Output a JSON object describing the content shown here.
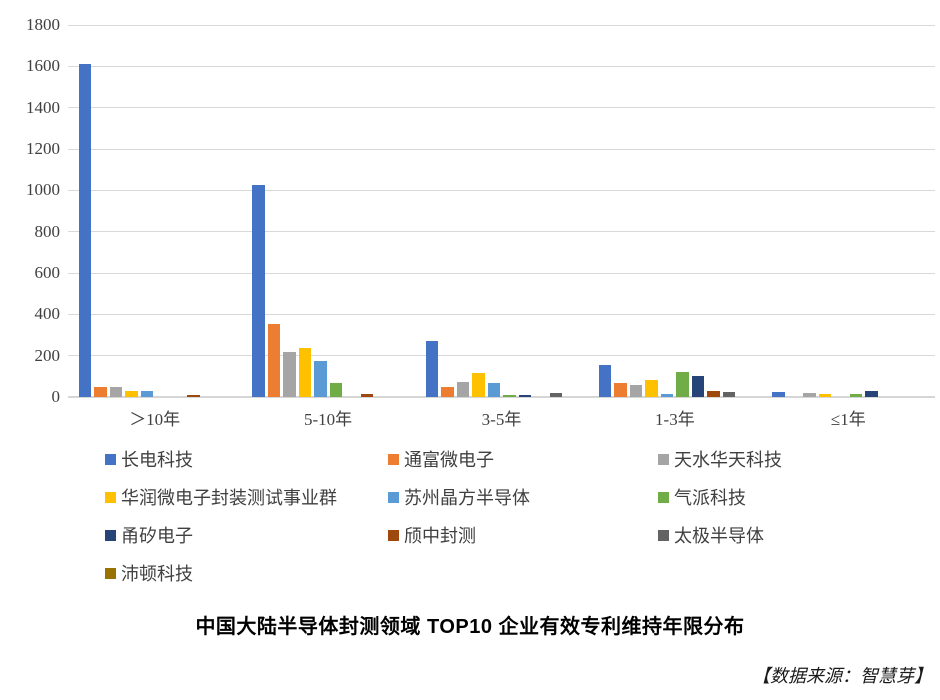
{
  "chart_data": {
    "type": "bar",
    "title": "中国大陆半导体封测领域 TOP10 企业有效专利维持年限分布",
    "source_note": "【数据来源：智慧芽】",
    "categories": [
      "＞10年",
      "5-10年",
      "3-5年",
      "1-3年",
      "≤1年"
    ],
    "series": [
      {
        "name": "长电科技",
        "color": "#4472C4",
        "values": [
          1610,
          1025,
          270,
          155,
          25
        ]
      },
      {
        "name": "通富微电子",
        "color": "#ED7D31",
        "values": [
          50,
          355,
          50,
          70,
          0
        ]
      },
      {
        "name": "天水华天科技",
        "color": "#A5A5A5",
        "values": [
          50,
          220,
          75,
          60,
          20
        ]
      },
      {
        "name": "华润微电子封装测试事业群",
        "color": "#FFC000",
        "values": [
          30,
          235,
          115,
          80,
          15
        ]
      },
      {
        "name": "苏州晶方半导体",
        "color": "#5B9BD5",
        "values": [
          30,
          175,
          70,
          15,
          0
        ]
      },
      {
        "name": "气派科技",
        "color": "#70AD47",
        "values": [
          0,
          70,
          10,
          120,
          15
        ]
      },
      {
        "name": "甬矽电子",
        "color": "#264478",
        "values": [
          0,
          0,
          10,
          100,
          30
        ]
      },
      {
        "name": "颀中封测",
        "color": "#9E480E",
        "values": [
          10,
          15,
          0,
          30,
          0
        ]
      },
      {
        "name": "太极半导体",
        "color": "#636363",
        "values": [
          0,
          0,
          20,
          25,
          0
        ]
      },
      {
        "name": "沛顿科技",
        "color": "#997300",
        "values": [
          0,
          0,
          0,
          0,
          0
        ]
      }
    ],
    "xlabel": "",
    "ylabel": "",
    "ylim": [
      0,
      1800
    ],
    "ytick_step": 200,
    "yticks": [
      "0",
      "200",
      "400",
      "600",
      "800",
      "1000",
      "1200",
      "1400",
      "1600",
      "1800"
    ],
    "grid": true,
    "legend_position": "bottom",
    "legend_columns": 3,
    "colors": {
      "gridline": "#d9d9d9",
      "axis_text": "#404040",
      "background": "#ffffff"
    }
  }
}
